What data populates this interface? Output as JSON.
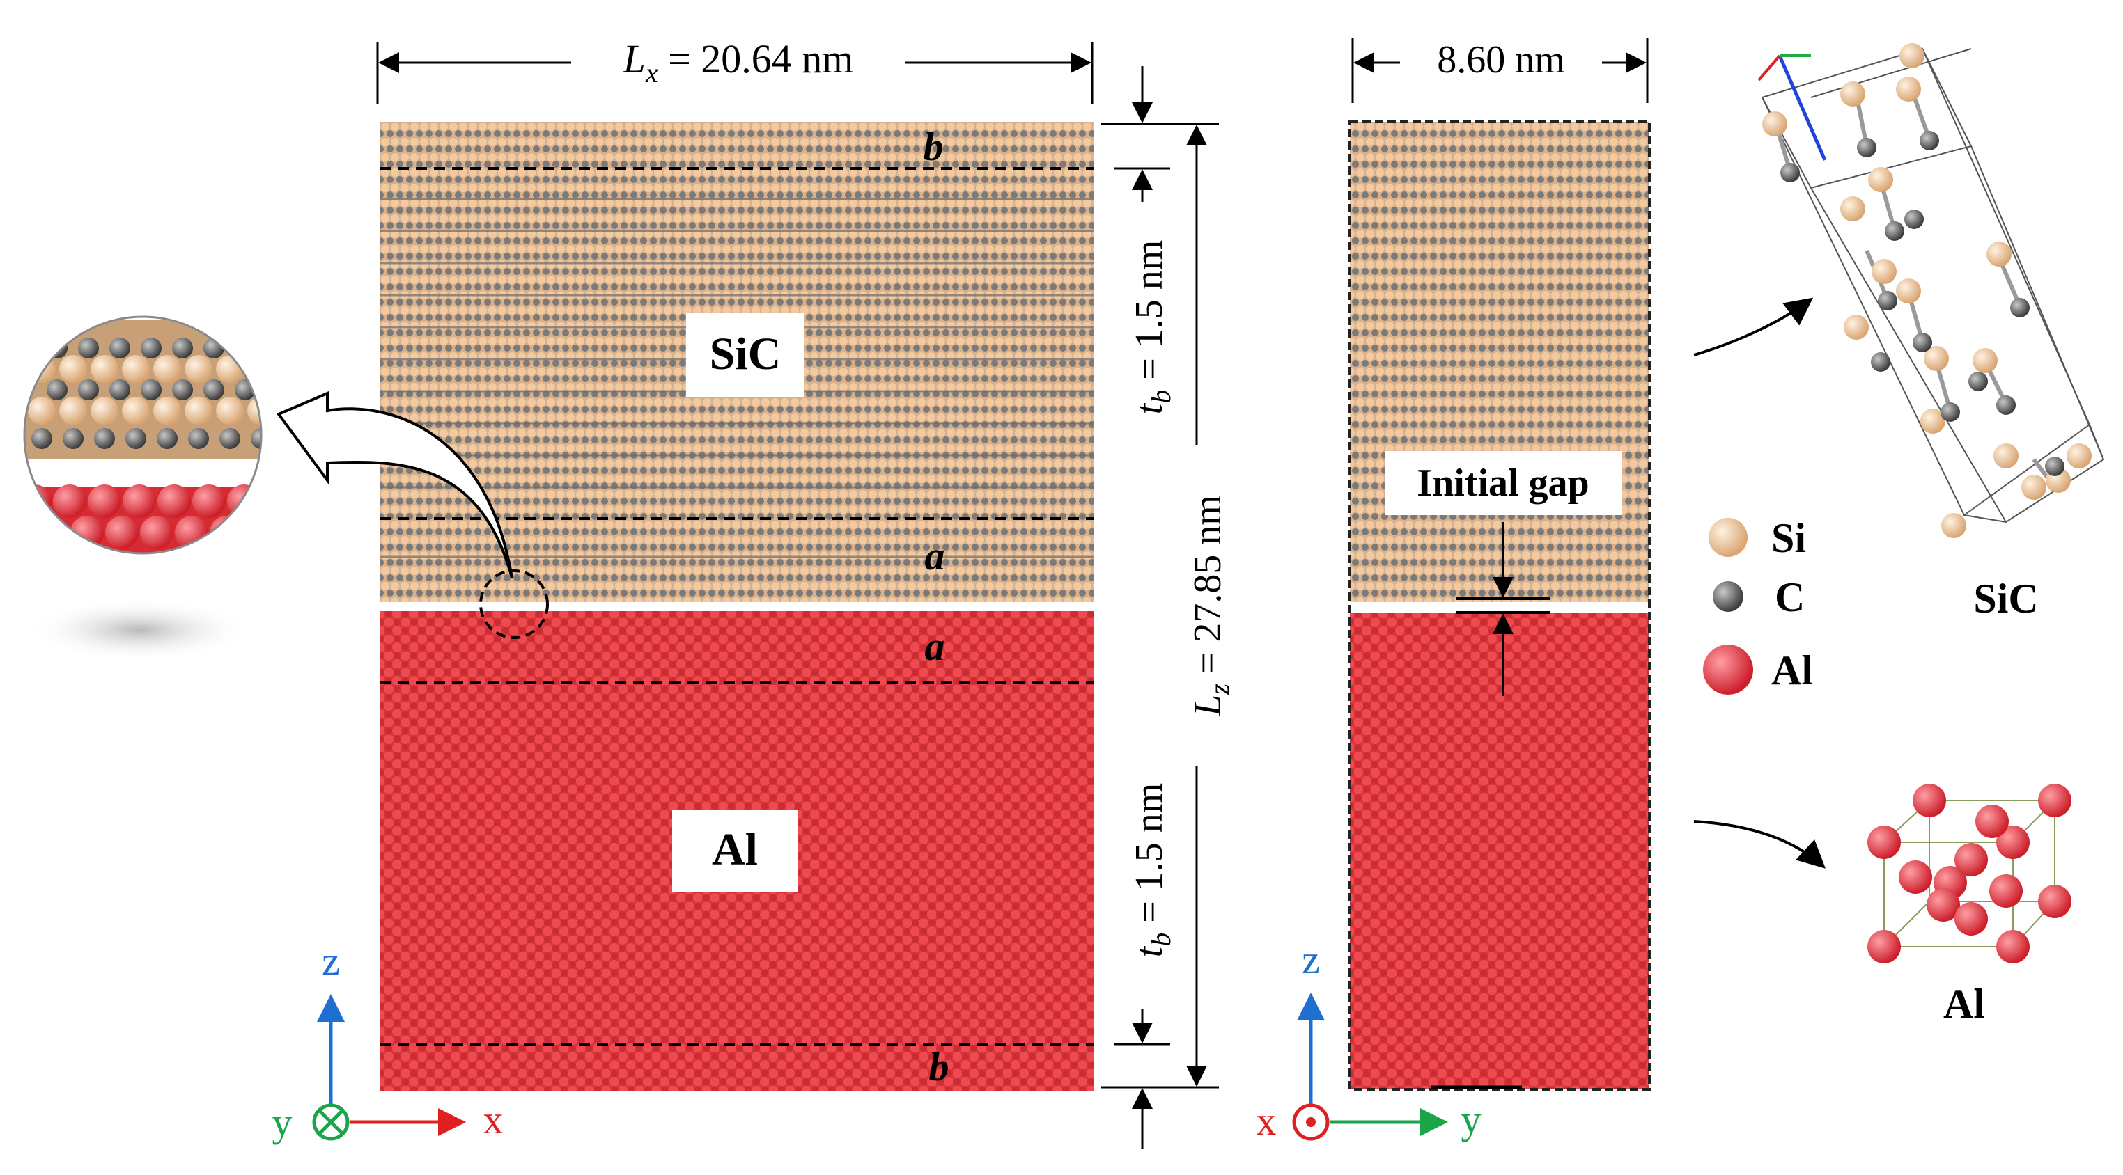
{
  "left_panel": {
    "lx_var": "L",
    "lx_sub": "x",
    "lx_value": " = 20.64 nm",
    "lz_var": "L",
    "lz_sub": "z",
    "lz_value": " = 27.85 nm",
    "tb_top_var": "t",
    "tb_top_sub": "b",
    "tb_top_value": " = 1.5 nm",
    "tb_bottom_var": "t",
    "tb_bottom_sub": "b",
    "tb_bottom_value": " = 1.5 nm",
    "sic_label": "SiC",
    "al_label": "Al",
    "region_b_top": "b",
    "region_a_sic": "a",
    "region_a_al": "a",
    "region_b_bottom": "b",
    "axis_z": "z",
    "axis_x": "x",
    "axis_y": "y"
  },
  "right_panel": {
    "width_label": "8.60 nm",
    "gap_label": "Initial gap",
    "axis_z": "z",
    "axis_x": "x",
    "axis_y": "y"
  },
  "legend": {
    "items": [
      {
        "symbol": "Si",
        "color": "#f1c9a0"
      },
      {
        "symbol": "C",
        "color": "#606060"
      },
      {
        "symbol": "Al",
        "color": "#e8343a"
      }
    ]
  },
  "unit_cells": {
    "sic_label": "SiC",
    "al_label": "Al"
  },
  "colors": {
    "sic_atom": "#e8c09a",
    "sic_band": "#8a8a8a",
    "al_fill": "#e43a40",
    "al_dark": "#b8282e",
    "axis_z": "#1f6fd0",
    "axis_x": "#e02020",
    "axis_y": "#1aa548"
  }
}
